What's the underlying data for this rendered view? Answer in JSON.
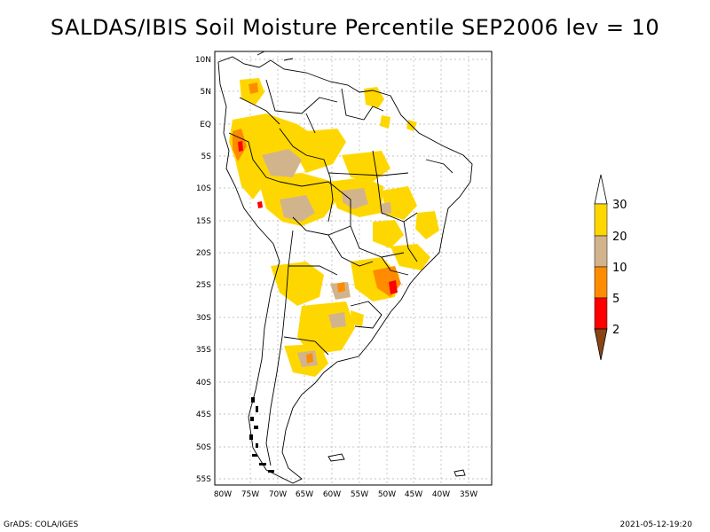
{
  "title": "SALDAS/IBIS Soil Moisture Percentile SEP2006 lev = 10",
  "footer": {
    "left": "GrADS: COLA/IGES",
    "right": "2021-05-12-19:20"
  },
  "map": {
    "lat_labels": [
      "10N",
      "5N",
      "EQ",
      "5S",
      "10S",
      "15S",
      "20S",
      "25S",
      "30S",
      "35S",
      "40S",
      "45S",
      "50S",
      "55S"
    ],
    "lon_labels": [
      "80W",
      "75W",
      "70W",
      "65W",
      "60W",
      "55W",
      "50W",
      "45W",
      "40W",
      "35W"
    ],
    "colors": {
      "ocean": "#ffffff",
      "land": "#ffffff",
      "border": "#000000",
      "grid": "#aaaaaa",
      "p20_30": "#ffd700",
      "p10_20": "#d2b48c",
      "p5_10": "#ff8c00",
      "p2_5": "#ff0000",
      "p0_2": "#8b4513"
    }
  },
  "legend": {
    "labels": [
      "30",
      "20",
      "10",
      "5",
      "2"
    ],
    "colors": [
      "#ffffff",
      "#ffd700",
      "#d2b48c",
      "#ff8c00",
      "#ff0000",
      "#8b4513"
    ]
  }
}
